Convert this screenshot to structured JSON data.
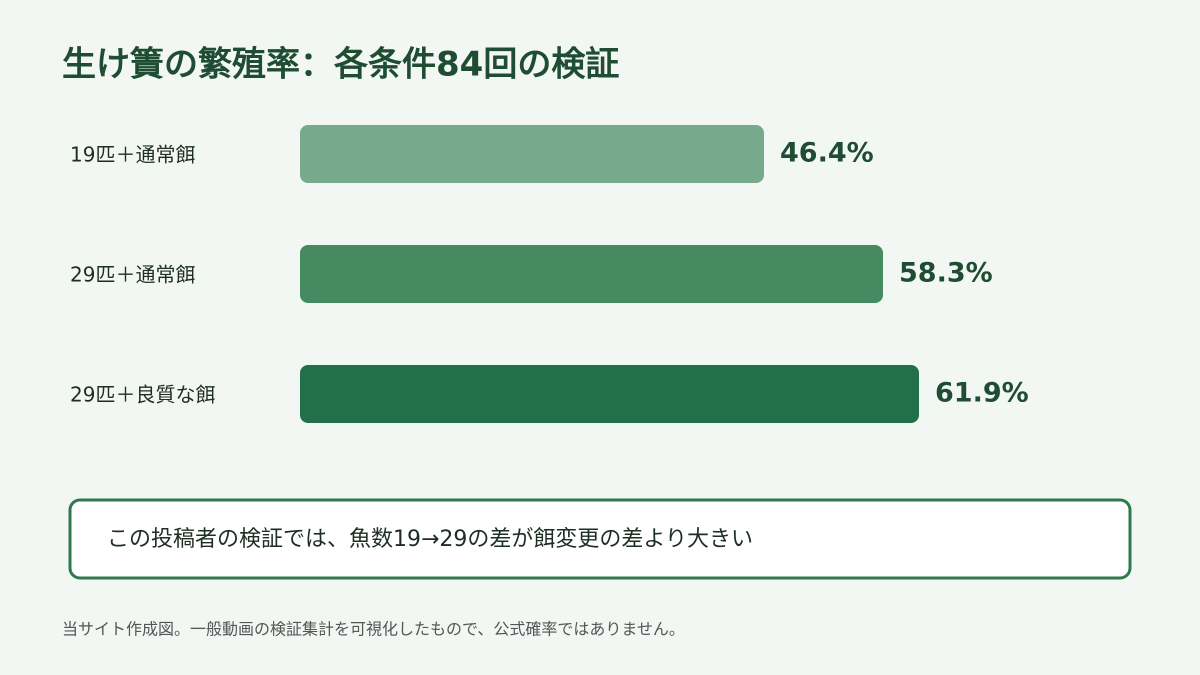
{
  "chart_data": {
    "type": "bar",
    "orientation": "horizontal",
    "title": "生け簀の繁殖率：各条件84回の検証",
    "categories": [
      "19匹＋通常餌",
      "29匹＋通常餌",
      "29匹＋良質な餌"
    ],
    "values": [
      46.4,
      58.3,
      61.9
    ],
    "value_labels": [
      "46.4%",
      "58.3%",
      "61.9%"
    ],
    "colors": [
      "#76aa8a",
      "#468a62",
      "#21704a"
    ],
    "note": "この投稿者の検証では、魚数19→29の差が餌変更の差より大きい",
    "source": "当サイト作成図。一般動画の検証集計を可視化したもので、公式確率ではありません。"
  }
}
